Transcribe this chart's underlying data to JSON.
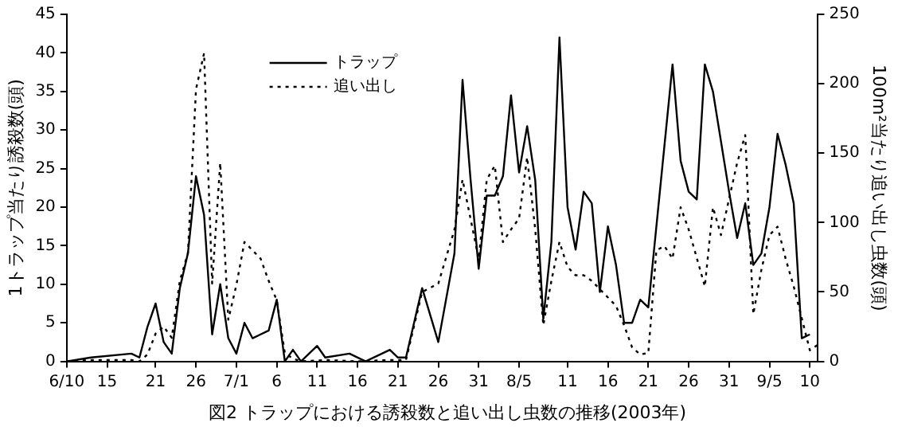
{
  "chart_data": {
    "type": "line",
    "title": "図2 トラップにおける誘殺数と追い出し虫数の推移(2003年)",
    "ylabel": "1トラップ当たり誘殺数(頭)",
    "y2label": "100m²当たり追い出し虫数(頭)",
    "xlim": [
      "2003-06-10",
      "2003-09-11"
    ],
    "xticks": [
      {
        "value": "2003-06-10",
        "label": "6/10"
      },
      {
        "value": "2003-06-15",
        "label": "15"
      },
      {
        "value": "2003-06-21",
        "label": "21"
      },
      {
        "value": "2003-06-26",
        "label": "26"
      },
      {
        "value": "2003-07-01",
        "label": "7/1"
      },
      {
        "value": "2003-07-06",
        "label": "6"
      },
      {
        "value": "2003-07-11",
        "label": "11"
      },
      {
        "value": "2003-07-16",
        "label": "16"
      },
      {
        "value": "2003-07-21",
        "label": "21"
      },
      {
        "value": "2003-07-26",
        "label": "26"
      },
      {
        "value": "2003-07-31",
        "label": "31"
      },
      {
        "value": "2003-08-05",
        "label": "8/5"
      },
      {
        "value": "2003-08-11",
        "label": "11"
      },
      {
        "value": "2003-08-16",
        "label": "16"
      },
      {
        "value": "2003-08-21",
        "label": "21"
      },
      {
        "value": "2003-08-26",
        "label": "26"
      },
      {
        "value": "2003-08-31",
        "label": "31"
      },
      {
        "value": "2003-09-05",
        "label": "9/5"
      },
      {
        "value": "2003-09-10",
        "label": "10"
      }
    ],
    "ylim": [
      0,
      45
    ],
    "yticks": [
      0,
      5,
      10,
      15,
      20,
      25,
      30,
      35,
      40,
      45
    ],
    "y2lim": [
      0,
      250
    ],
    "y2ticks": [
      0,
      50,
      100,
      150,
      200,
      250
    ],
    "grid": false,
    "legend": "top",
    "marker": "none",
    "series": [
      {
        "name": "トラップ",
        "color": "#000000",
        "line_style": "solid",
        "x": [
          "2003-06-10",
          "2003-06-13",
          "2003-06-18",
          "2003-06-19",
          "2003-06-20",
          "2003-06-21",
          "2003-06-22",
          "2003-06-23",
          "2003-06-24",
          "2003-06-25",
          "2003-06-26",
          "2003-06-27",
          "2003-06-28",
          "2003-06-29",
          "2003-06-30",
          "2003-07-01",
          "2003-07-02",
          "2003-07-03",
          "2003-07-04",
          "2003-07-05",
          "2003-07-06",
          "2003-07-07",
          "2003-07-08",
          "2003-07-09",
          "2003-07-11",
          "2003-07-12",
          "2003-07-15",
          "2003-07-17",
          "2003-07-20",
          "2003-07-21",
          "2003-07-22",
          "2003-07-24",
          "2003-07-26",
          "2003-07-28",
          "2003-07-29",
          "2003-07-30",
          "2003-07-31",
          "2003-08-01",
          "2003-08-02",
          "2003-08-03",
          "2003-08-04",
          "2003-08-05",
          "2003-08-06",
          "2003-08-07",
          "2003-08-08",
          "2003-08-09",
          "2003-08-10",
          "2003-08-11",
          "2003-08-12",
          "2003-08-13",
          "2003-08-14",
          "2003-08-15",
          "2003-08-16",
          "2003-08-17",
          "2003-08-18",
          "2003-08-19",
          "2003-08-20",
          "2003-08-21",
          "2003-08-24",
          "2003-08-25",
          "2003-08-26",
          "2003-08-27",
          "2003-08-28",
          "2003-08-29",
          "2003-08-31",
          "2003-09-01",
          "2003-09-02",
          "2003-09-03",
          "2003-09-04",
          "2003-09-05",
          "2003-09-06",
          "2003-09-07",
          "2003-09-08",
          "2003-09-09",
          "2003-09-10"
        ],
        "values": [
          0,
          0.5,
          1,
          0.5,
          4.5,
          7.5,
          2.5,
          1,
          9.5,
          14,
          24,
          19,
          3.5,
          10,
          3,
          1,
          5,
          3,
          3.5,
          4,
          8,
          0,
          1.5,
          0,
          2,
          0.5,
          1,
          0,
          1.5,
          0.5,
          0.5,
          9.5,
          2.5,
          14,
          36.5,
          23.5,
          12,
          21.5,
          21.5,
          24,
          34.5,
          24.5,
          30.5,
          23.5,
          5.5,
          15.5,
          42,
          20,
          14.5,
          22,
          20.5,
          9,
          17.5,
          12.5,
          5,
          5,
          8,
          7,
          38.5,
          26,
          22,
          21,
          38.5,
          35,
          22,
          16,
          20.5,
          12.5,
          14,
          20,
          29.5,
          25.5,
          20.5,
          3,
          3.5
        ]
      },
      {
        "name": "追い出し",
        "color": "#000000",
        "line_style": "dotted",
        "axis": "y2",
        "x": [
          "2003-06-10",
          "2003-06-13",
          "2003-06-18",
          "2003-06-19",
          "2003-06-20",
          "2003-06-21",
          "2003-06-22",
          "2003-06-23",
          "2003-06-24",
          "2003-06-25",
          "2003-06-26",
          "2003-06-27",
          "2003-06-28",
          "2003-06-29",
          "2003-06-30",
          "2003-07-01",
          "2003-07-02",
          "2003-07-03",
          "2003-07-04",
          "2003-07-05",
          "2003-07-06",
          "2003-07-07",
          "2003-07-08",
          "2003-07-09",
          "2003-07-12",
          "2003-07-16",
          "2003-07-20",
          "2003-07-22",
          "2003-07-24",
          "2003-07-26",
          "2003-07-28",
          "2003-07-29",
          "2003-07-31",
          "2003-08-01",
          "2003-08-02",
          "2003-08-03",
          "2003-08-04",
          "2003-08-05",
          "2003-08-06",
          "2003-08-07",
          "2003-08-08",
          "2003-08-09",
          "2003-08-10",
          "2003-08-11",
          "2003-08-12",
          "2003-08-13",
          "2003-08-14",
          "2003-08-15",
          "2003-08-17",
          "2003-08-18",
          "2003-08-19",
          "2003-08-20",
          "2003-08-21",
          "2003-08-22",
          "2003-08-23",
          "2003-08-24",
          "2003-08-25",
          "2003-08-26",
          "2003-08-28",
          "2003-08-29",
          "2003-08-30",
          "2003-09-01",
          "2003-09-02",
          "2003-09-03",
          "2003-09-04",
          "2003-09-05",
          "2003-09-06",
          "2003-09-07",
          "2003-09-08",
          "2003-09-10",
          "2003-09-11"
        ],
        "values": [
          0,
          1,
          1,
          0,
          5,
          20,
          25,
          17,
          58,
          78,
          196,
          222,
          56,
          143,
          30,
          55,
          86,
          80,
          74,
          58,
          44,
          6,
          2,
          0,
          1,
          0,
          1,
          1,
          50,
          56,
          95,
          131,
          74,
          131,
          141,
          86,
          95,
          103,
          147,
          95,
          26,
          58,
          86,
          68,
          62,
          62,
          58,
          52,
          40,
          26,
          10,
          5,
          6,
          80,
          83,
          74,
          111,
          95,
          54,
          111,
          91,
          143,
          163,
          34,
          66,
          91,
          97,
          74,
          54,
          8,
          12
        ]
      }
    ]
  }
}
